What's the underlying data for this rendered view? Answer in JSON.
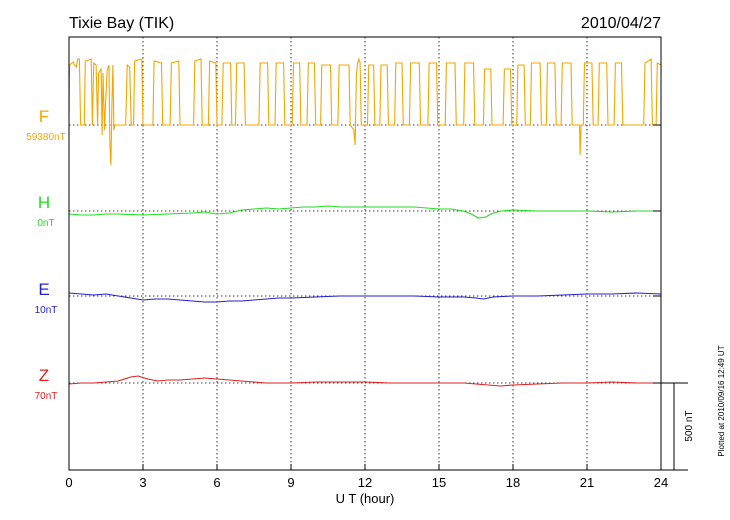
{
  "header": {
    "station": "Tixie Bay (TIK)",
    "date": "2010/04/27"
  },
  "footer": {
    "plotted": "Plotted at 2010/09/16 12:49 UT"
  },
  "chart_data": {
    "type": "line",
    "xlabel": "U T (hour)",
    "xlim": [
      0,
      24
    ],
    "xticks": [
      0,
      3,
      6,
      9,
      12,
      15,
      18,
      21,
      24
    ],
    "grid": true,
    "scale_bar": {
      "label": "500 nT",
      "value": 500
    },
    "series": [
      {
        "name": "F",
        "baseline_label": "59380nT",
        "color": "#f5a500",
        "points": [
          [
            0,
            9
          ],
          [
            0.02,
            60
          ],
          [
            0.18,
            63
          ],
          [
            0.22,
            60
          ],
          [
            0.3,
            58
          ],
          [
            0.35,
            66
          ],
          [
            0.42,
            66
          ],
          [
            0.47,
            0
          ],
          [
            0.62,
            0
          ],
          [
            0.66,
            64
          ],
          [
            0.9,
            66
          ],
          [
            0.95,
            0
          ],
          [
            1.0,
            62
          ],
          [
            1.1,
            60
          ],
          [
            1.16,
            0
          ],
          [
            1.2,
            52
          ],
          [
            1.3,
            56
          ],
          [
            1.34,
            -10
          ],
          [
            1.38,
            52
          ],
          [
            1.44,
            -5
          ],
          [
            1.48,
            20
          ],
          [
            1.55,
            55
          ],
          [
            1.62,
            60
          ],
          [
            1.66,
            -20
          ],
          [
            1.7,
            -40
          ],
          [
            1.74,
            20
          ],
          [
            1.78,
            60
          ],
          [
            1.82,
            -5
          ],
          [
            1.86,
            0
          ],
          [
            2.3,
            0
          ],
          [
            2.36,
            60
          ],
          [
            2.46,
            58
          ],
          [
            2.52,
            0
          ],
          [
            2.62,
            0
          ],
          [
            2.66,
            64
          ],
          [
            2.95,
            66
          ],
          [
            3.0,
            0
          ],
          [
            3.4,
            0
          ],
          [
            3.45,
            64
          ],
          [
            3.75,
            62
          ],
          [
            3.8,
            0
          ],
          [
            4.1,
            0
          ],
          [
            4.15,
            62
          ],
          [
            4.45,
            64
          ],
          [
            4.5,
            0
          ],
          [
            5.05,
            0
          ],
          [
            5.1,
            64
          ],
          [
            5.35,
            66
          ],
          [
            5.4,
            0
          ],
          [
            5.65,
            0
          ],
          [
            5.7,
            64
          ],
          [
            5.95,
            62
          ],
          [
            6.0,
            0
          ],
          [
            6.2,
            0
          ],
          [
            6.25,
            62
          ],
          [
            6.55,
            62
          ],
          [
            6.6,
            0
          ],
          [
            6.75,
            0
          ],
          [
            6.8,
            62
          ],
          [
            7.1,
            62
          ],
          [
            7.15,
            0
          ],
          [
            7.7,
            0
          ],
          [
            7.75,
            62
          ],
          [
            8.05,
            62
          ],
          [
            8.1,
            0
          ],
          [
            8.35,
            0
          ],
          [
            8.4,
            62
          ],
          [
            8.7,
            62
          ],
          [
            8.75,
            0
          ],
          [
            9.05,
            0
          ],
          [
            9.1,
            62
          ],
          [
            9.35,
            62
          ],
          [
            9.4,
            0
          ],
          [
            9.65,
            0
          ],
          [
            9.7,
            62
          ],
          [
            9.95,
            62
          ],
          [
            10.0,
            0
          ],
          [
            10.2,
            0
          ],
          [
            10.25,
            60
          ],
          [
            10.6,
            60
          ],
          [
            10.65,
            0
          ],
          [
            10.9,
            0
          ],
          [
            10.95,
            60
          ],
          [
            11.35,
            60
          ],
          [
            11.4,
            0
          ],
          [
            11.55,
            -5
          ],
          [
            11.6,
            -20
          ],
          [
            11.65,
            50
          ],
          [
            11.7,
            62
          ],
          [
            11.75,
            66
          ],
          [
            11.8,
            62
          ],
          [
            11.85,
            0
          ],
          [
            12.1,
            0
          ],
          [
            12.15,
            60
          ],
          [
            12.35,
            60
          ],
          [
            12.4,
            0
          ],
          [
            12.6,
            0
          ],
          [
            12.65,
            60
          ],
          [
            12.9,
            60
          ],
          [
            12.95,
            0
          ],
          [
            13.2,
            0
          ],
          [
            13.25,
            62
          ],
          [
            13.5,
            62
          ],
          [
            13.55,
            0
          ],
          [
            13.8,
            0
          ],
          [
            13.85,
            62
          ],
          [
            14.2,
            62
          ],
          [
            14.25,
            0
          ],
          [
            14.55,
            0
          ],
          [
            14.6,
            62
          ],
          [
            14.9,
            62
          ],
          [
            14.95,
            0
          ],
          [
            15.25,
            0
          ],
          [
            15.3,
            62
          ],
          [
            15.65,
            62
          ],
          [
            15.7,
            0
          ],
          [
            16.0,
            0
          ],
          [
            16.05,
            62
          ],
          [
            16.4,
            62
          ],
          [
            16.45,
            0
          ],
          [
            16.8,
            0
          ],
          [
            16.85,
            56
          ],
          [
            17.1,
            56
          ],
          [
            17.15,
            0
          ],
          [
            17.6,
            0
          ],
          [
            17.65,
            56
          ],
          [
            17.9,
            56
          ],
          [
            17.95,
            0
          ],
          [
            18.15,
            0
          ],
          [
            18.2,
            60
          ],
          [
            18.45,
            60
          ],
          [
            18.5,
            0
          ],
          [
            18.7,
            0
          ],
          [
            18.75,
            62
          ],
          [
            19.1,
            62
          ],
          [
            19.15,
            0
          ],
          [
            19.35,
            0
          ],
          [
            19.4,
            62
          ],
          [
            19.7,
            62
          ],
          [
            19.75,
            0
          ],
          [
            19.95,
            0
          ],
          [
            20.0,
            62
          ],
          [
            20.35,
            62
          ],
          [
            20.4,
            0
          ],
          [
            20.7,
            0
          ],
          [
            20.72,
            -30
          ],
          [
            20.76,
            0
          ],
          [
            20.85,
            0
          ],
          [
            20.9,
            62
          ],
          [
            21.2,
            62
          ],
          [
            21.25,
            0
          ],
          [
            21.45,
            0
          ],
          [
            21.5,
            62
          ],
          [
            21.8,
            62
          ],
          [
            21.85,
            0
          ],
          [
            22.1,
            0
          ],
          [
            22.15,
            62
          ],
          [
            22.4,
            62
          ],
          [
            22.45,
            0
          ],
          [
            23.3,
            0
          ],
          [
            23.35,
            62
          ],
          [
            23.6,
            66
          ],
          [
            23.65,
            0
          ],
          [
            23.8,
            0
          ],
          [
            23.85,
            62
          ],
          [
            24,
            60
          ]
        ]
      },
      {
        "name": "H",
        "baseline_label": "0nT",
        "color": "#22dd22",
        "points": [
          [
            0,
            -3
          ],
          [
            0.5,
            -4
          ],
          [
            1,
            -4
          ],
          [
            1.5,
            -3
          ],
          [
            2,
            -3
          ],
          [
            3,
            -4
          ],
          [
            4,
            -3
          ],
          [
            5,
            -2
          ],
          [
            5.5,
            -1
          ],
          [
            6,
            -3
          ],
          [
            6.5,
            -2
          ],
          [
            7,
            1
          ],
          [
            7.5,
            2
          ],
          [
            8,
            3
          ],
          [
            8.5,
            2
          ],
          [
            9,
            3
          ],
          [
            9.5,
            4
          ],
          [
            10,
            4
          ],
          [
            10.5,
            5
          ],
          [
            11,
            4
          ],
          [
            12,
            4
          ],
          [
            13,
            4
          ],
          [
            14,
            4
          ],
          [
            14.5,
            3
          ],
          [
            15,
            2
          ],
          [
            15.5,
            2
          ],
          [
            16,
            0
          ],
          [
            16.3,
            -3
          ],
          [
            16.6,
            -7
          ],
          [
            16.9,
            -6
          ],
          [
            17.1,
            -3
          ],
          [
            17.5,
            0
          ],
          [
            18,
            1
          ],
          [
            19,
            0
          ],
          [
            20,
            0
          ],
          [
            21,
            0
          ],
          [
            22,
            -1
          ],
          [
            23,
            0
          ],
          [
            24,
            0
          ]
        ]
      },
      {
        "name": "E",
        "baseline_label": "10nT",
        "color": "#2222cc",
        "points": [
          [
            0,
            3
          ],
          [
            0.5,
            2
          ],
          [
            1,
            1
          ],
          [
            1.5,
            2
          ],
          [
            2,
            0
          ],
          [
            2.5,
            -2
          ],
          [
            3,
            -4
          ],
          [
            3.5,
            -3
          ],
          [
            4,
            -3
          ],
          [
            4.5,
            -4
          ],
          [
            5,
            -5
          ],
          [
            5.5,
            -6
          ],
          [
            6,
            -6
          ],
          [
            6.5,
            -5
          ],
          [
            7,
            -5
          ],
          [
            7.5,
            -4
          ],
          [
            8,
            -3
          ],
          [
            8.5,
            -2
          ],
          [
            9,
            -2
          ],
          [
            10,
            -1
          ],
          [
            11,
            0
          ],
          [
            12,
            0
          ],
          [
            13,
            0
          ],
          [
            14,
            0
          ],
          [
            15,
            -1
          ],
          [
            16,
            -1
          ],
          [
            16.5,
            -2
          ],
          [
            16.8,
            -3
          ],
          [
            17.2,
            -1
          ],
          [
            18,
            0
          ],
          [
            19,
            0
          ],
          [
            20,
            1
          ],
          [
            21,
            2
          ],
          [
            22,
            2
          ],
          [
            23,
            3
          ],
          [
            24,
            2
          ]
        ]
      },
      {
        "name": "Z",
        "baseline_label": "70nT",
        "color": "#dd2222",
        "points": [
          [
            0,
            -1
          ],
          [
            0.5,
            0
          ],
          [
            1,
            0
          ],
          [
            1.5,
            1
          ],
          [
            2,
            2
          ],
          [
            2.5,
            6
          ],
          [
            2.8,
            7
          ],
          [
            3.2,
            4
          ],
          [
            3.6,
            2
          ],
          [
            4,
            3
          ],
          [
            4.5,
            3
          ],
          [
            5,
            4
          ],
          [
            5.5,
            5
          ],
          [
            6,
            4
          ],
          [
            6.5,
            3
          ],
          [
            7,
            2
          ],
          [
            7.5,
            1
          ],
          [
            8,
            0
          ],
          [
            9,
            0
          ],
          [
            10,
            1
          ],
          [
            11,
            1
          ],
          [
            12,
            1
          ],
          [
            13,
            0
          ],
          [
            14,
            0
          ],
          [
            15,
            0
          ],
          [
            16,
            0
          ],
          [
            16.5,
            -1
          ],
          [
            17,
            -2
          ],
          [
            17.5,
            -3
          ],
          [
            18,
            -2
          ],
          [
            19,
            -1
          ],
          [
            20,
            0
          ],
          [
            21,
            0
          ],
          [
            22,
            1
          ],
          [
            23,
            0
          ],
          [
            24,
            0
          ]
        ]
      }
    ]
  }
}
